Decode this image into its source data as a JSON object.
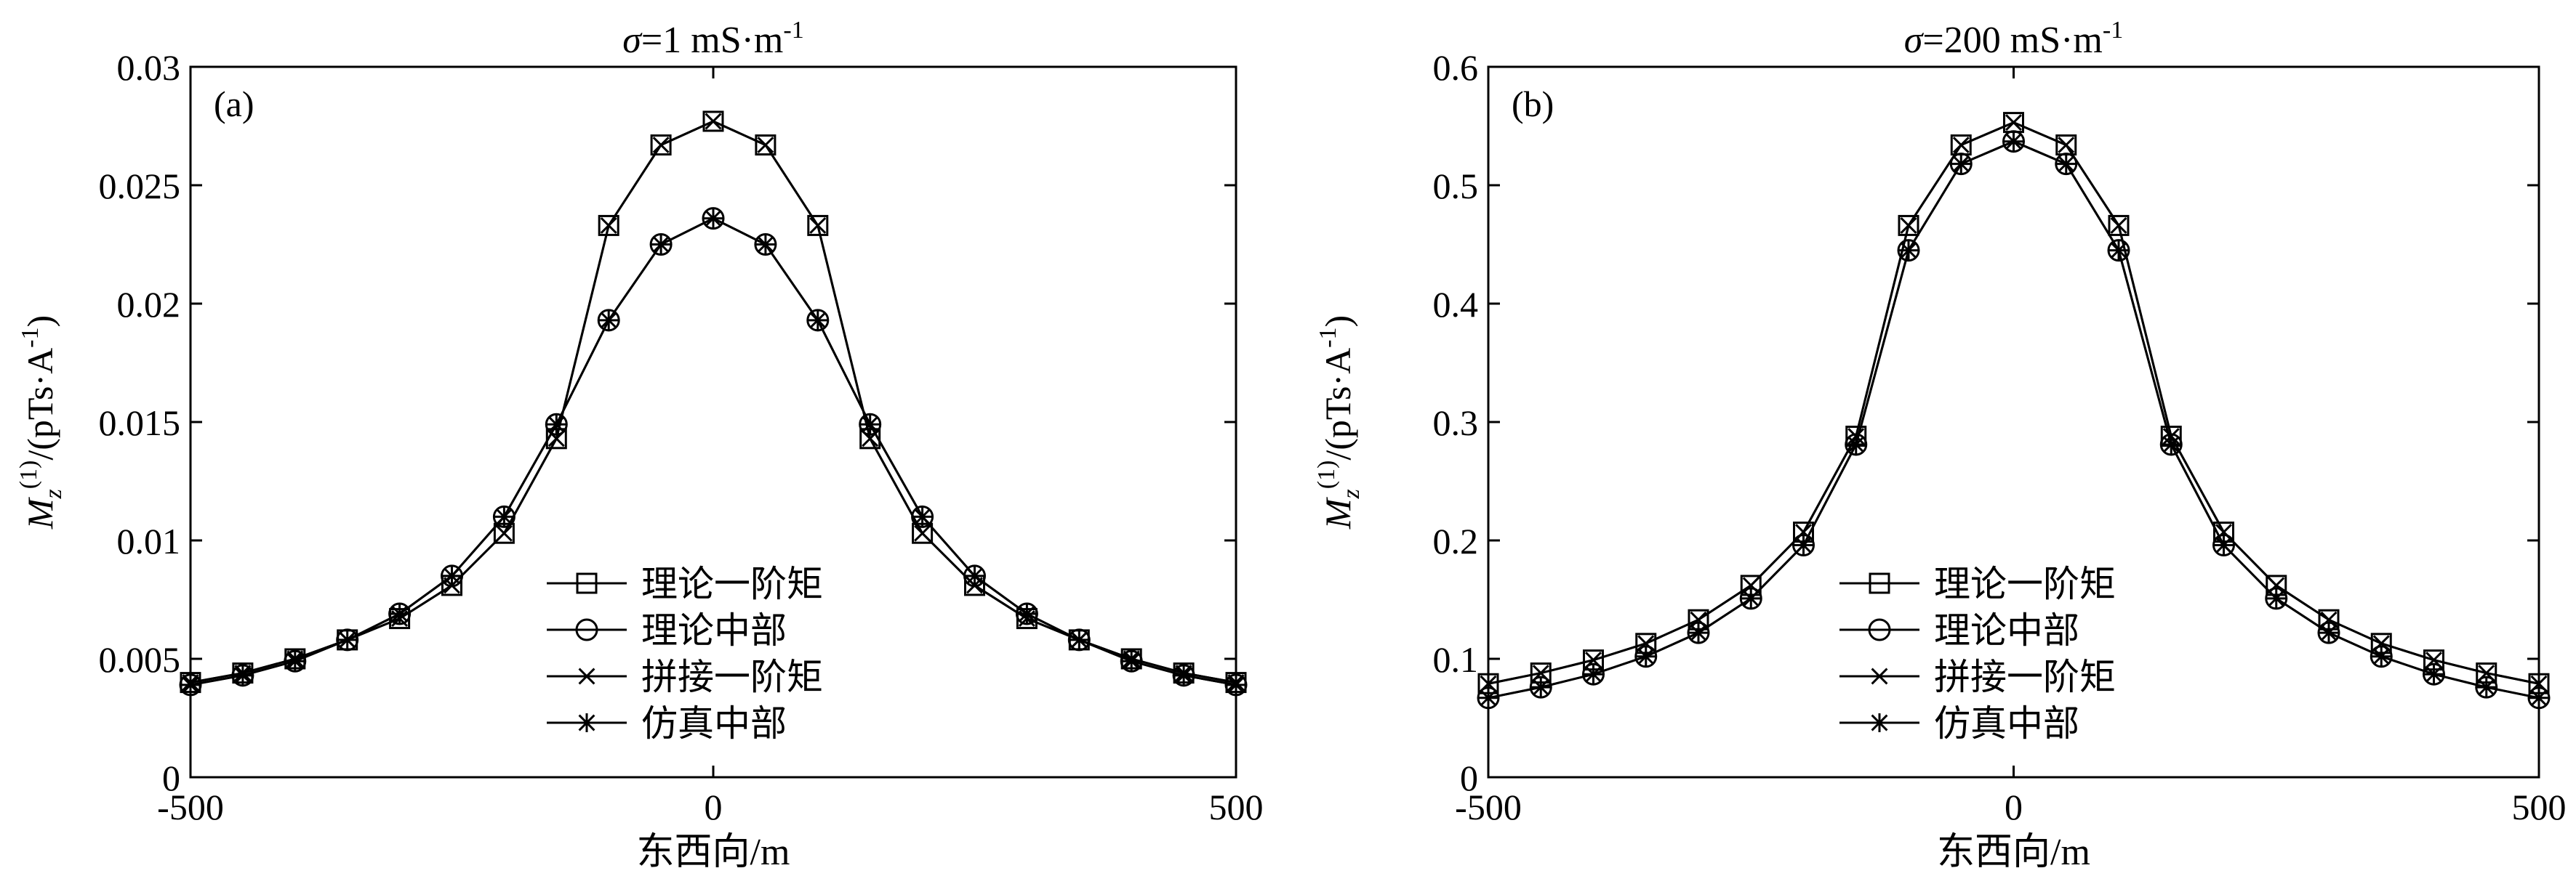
{
  "chart_data": [
    {
      "type": "line",
      "title_prefix": "σ",
      "title_main": "=1 mS·m",
      "title_sup": "-1",
      "panel_label": "(a)",
      "xlabel": "东西向/m",
      "ylabel_main": "M",
      "ylabel_sub": "z",
      "ylabel_sup": "(1)",
      "ylabel_unit": "/(pTs·A",
      "ylabel_unit_sup": "-1",
      "ylabel_close": ")",
      "xlim": [
        -500,
        500
      ],
      "ylim": [
        0,
        0.03
      ],
      "xticks": [
        "-500",
        "0",
        "500"
      ],
      "yticks": [
        "0",
        "0.005",
        "0.01",
        "0.015",
        "0.02",
        "0.025",
        "0.03"
      ],
      "grid": false,
      "legend_position": "lower-center",
      "x": [
        -500,
        -450,
        -400,
        -350,
        -300,
        -250,
        -200,
        -150,
        -100,
        -50,
        0,
        50,
        100,
        150,
        200,
        250,
        300,
        350,
        400,
        450,
        500
      ],
      "series": [
        {
          "name": "理论一阶矩",
          "marker": "square",
          "values": [
            0.004,
            0.0044,
            0.005,
            0.0058,
            0.0067,
            0.0081,
            0.0103,
            0.0143,
            0.0233,
            0.0267,
            0.0277,
            0.0267,
            0.0233,
            0.0143,
            0.0103,
            0.0081,
            0.0067,
            0.0058,
            0.005,
            0.0044,
            0.004
          ]
        },
        {
          "name": "理论中部",
          "marker": "circle",
          "values": [
            0.0039,
            0.0043,
            0.0049,
            0.0058,
            0.0069,
            0.0085,
            0.011,
            0.0149,
            0.0193,
            0.0225,
            0.0236,
            0.0225,
            0.0193,
            0.0149,
            0.011,
            0.0085,
            0.0069,
            0.0058,
            0.0049,
            0.0043,
            0.0039
          ]
        },
        {
          "name": "拼接一阶矩",
          "marker": "x",
          "values": [
            0.004,
            0.0044,
            0.005,
            0.0058,
            0.0067,
            0.0081,
            0.0103,
            0.0143,
            0.0233,
            0.0267,
            0.0277,
            0.0267,
            0.0233,
            0.0143,
            0.0103,
            0.0081,
            0.0067,
            0.0058,
            0.005,
            0.0044,
            0.004
          ]
        },
        {
          "name": "仿真中部",
          "marker": "star",
          "values": [
            0.0039,
            0.0043,
            0.0049,
            0.0058,
            0.0069,
            0.0085,
            0.011,
            0.0149,
            0.0193,
            0.0225,
            0.0236,
            0.0225,
            0.0193,
            0.0149,
            0.011,
            0.0085,
            0.0069,
            0.0058,
            0.0049,
            0.0043,
            0.0039
          ]
        }
      ]
    },
    {
      "type": "line",
      "title_prefix": "σ",
      "title_main": "=200 mS·m",
      "title_sup": "-1",
      "panel_label": "(b)",
      "xlabel": "东西向/m",
      "ylabel_main": "M",
      "ylabel_sub": "z",
      "ylabel_sup": "(1)",
      "ylabel_unit": "/(pTs·A",
      "ylabel_unit_sup": "-1",
      "ylabel_close": ")",
      "xlim": [
        -500,
        500
      ],
      "ylim": [
        0,
        0.6
      ],
      "xticks": [
        "-500",
        "0",
        "500"
      ],
      "yticks": [
        "0",
        "0.1",
        "0.2",
        "0.3",
        "0.4",
        "0.5",
        "0.6"
      ],
      "grid": false,
      "legend_position": "lower-center",
      "x": [
        -500,
        -450,
        -400,
        -350,
        -300,
        -250,
        -200,
        -150,
        -100,
        -50,
        0,
        50,
        100,
        150,
        200,
        250,
        300,
        350,
        400,
        450,
        500
      ],
      "series": [
        {
          "name": "理论一阶矩",
          "marker": "square",
          "values": [
            0.079,
            0.088,
            0.099,
            0.113,
            0.133,
            0.162,
            0.207,
            0.288,
            0.466,
            0.534,
            0.553,
            0.534,
            0.466,
            0.288,
            0.207,
            0.162,
            0.133,
            0.113,
            0.099,
            0.088,
            0.079
          ]
        },
        {
          "name": "理论中部",
          "marker": "circle",
          "values": [
            0.067,
            0.076,
            0.087,
            0.102,
            0.122,
            0.151,
            0.196,
            0.281,
            0.445,
            0.518,
            0.537,
            0.518,
            0.445,
            0.281,
            0.196,
            0.151,
            0.122,
            0.102,
            0.087,
            0.076,
            0.067
          ]
        },
        {
          "name": "拼接一阶矩",
          "marker": "x",
          "values": [
            0.079,
            0.088,
            0.099,
            0.113,
            0.133,
            0.162,
            0.207,
            0.288,
            0.466,
            0.534,
            0.553,
            0.534,
            0.466,
            0.288,
            0.207,
            0.162,
            0.133,
            0.113,
            0.099,
            0.088,
            0.079
          ]
        },
        {
          "name": "仿真中部",
          "marker": "star",
          "values": [
            0.067,
            0.076,
            0.087,
            0.102,
            0.122,
            0.151,
            0.196,
            0.281,
            0.445,
            0.518,
            0.537,
            0.518,
            0.445,
            0.281,
            0.196,
            0.151,
            0.122,
            0.102,
            0.087,
            0.076,
            0.067
          ]
        }
      ]
    }
  ]
}
